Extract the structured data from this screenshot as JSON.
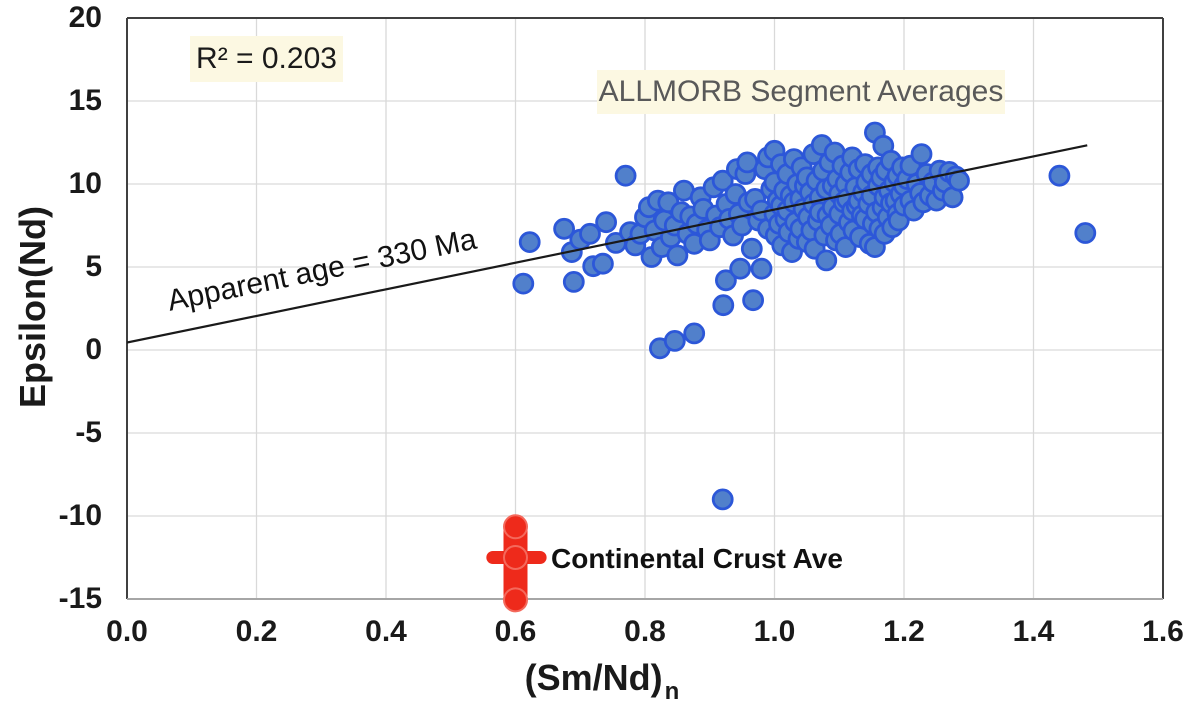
{
  "chart_data": {
    "type": "scatter",
    "title": "",
    "xlabel_main": "(Sm/Nd)",
    "xlabel_sub": "n",
    "ylabel": "Epsilon(Nd)",
    "xlim": [
      0,
      1.6
    ],
    "ylim": [
      -15,
      20
    ],
    "x_ticks": [
      "0.0",
      "0.2",
      "0.4",
      "0.6",
      "0.8",
      "1.0",
      "1.2",
      "1.4",
      "1.6"
    ],
    "y_ticks": [
      "20",
      "15",
      "10",
      "5",
      "0",
      "-5",
      "-10",
      "-15"
    ],
    "grid": true,
    "legend": "none",
    "annotations": {
      "r_squared": "R² = 0.203",
      "dataset_label": "ALLMORB Segment Averages",
      "trend_label": "Apparent age = 330 Ma",
      "crust_label": "Continental Crust Ave"
    },
    "trendline": {
      "x_start": 0,
      "y_start": 0.45,
      "x_end": 1.483,
      "y_end": 12.33
    },
    "colors": {
      "marker_fill": "#5180cb",
      "marker_stroke": "#2c57d8",
      "crust_red": "#ee2a1b",
      "crust_red_ring": "#f4695c",
      "gridline": "#d9d9d9",
      "border_dark": "#404040",
      "border_light": "#a6a6a6",
      "trend": "#1a1a1a",
      "annotation_bg": "#fcf8e2",
      "dataset_label_color": "#595959"
    },
    "series": [
      {
        "name": "ALLMORB Segment Averages",
        "points": [
          [
            0.612,
            4.0
          ],
          [
            0.622,
            6.5
          ],
          [
            0.675,
            7.3
          ],
          [
            0.687,
            5.9
          ],
          [
            0.69,
            4.1
          ],
          [
            0.7,
            6.65
          ],
          [
            0.715,
            7.0
          ],
          [
            0.72,
            5.05
          ],
          [
            0.735,
            5.2
          ],
          [
            0.74,
            7.7
          ],
          [
            0.755,
            6.45
          ],
          [
            0.77,
            10.5
          ],
          [
            0.777,
            7.1
          ],
          [
            0.785,
            6.3
          ],
          [
            0.793,
            7.0
          ],
          [
            0.8,
            8.0
          ],
          [
            0.81,
            5.6
          ],
          [
            0.823,
            0.1
          ],
          [
            0.846,
            0.55
          ],
          [
            0.876,
            1.0
          ],
          [
            0.92,
            -9.0
          ],
          [
            0.921,
            2.7
          ],
          [
            0.967,
            3.0
          ],
          [
            0.925,
            4.2
          ],
          [
            0.947,
            4.9
          ],
          [
            0.98,
            4.9
          ],
          [
            0.806,
            8.6
          ],
          [
            0.815,
            7.2
          ],
          [
            0.82,
            9.0
          ],
          [
            0.826,
            6.2
          ],
          [
            0.83,
            7.8
          ],
          [
            0.836,
            8.9
          ],
          [
            0.84,
            6.8
          ],
          [
            0.846,
            7.5
          ],
          [
            0.85,
            5.7
          ],
          [
            0.856,
            8.3
          ],
          [
            0.86,
            9.6
          ],
          [
            0.866,
            7.0
          ],
          [
            0.87,
            8.05
          ],
          [
            0.876,
            6.4
          ],
          [
            0.88,
            7.6
          ],
          [
            0.886,
            9.2
          ],
          [
            0.89,
            8.5
          ],
          [
            0.896,
            7.25
          ],
          [
            0.9,
            6.6
          ],
          [
            0.906,
            9.8
          ],
          [
            0.91,
            8.1
          ],
          [
            0.916,
            7.4
          ],
          [
            0.92,
            10.2
          ],
          [
            0.926,
            8.8
          ],
          [
            0.93,
            7.9
          ],
          [
            0.936,
            6.9
          ],
          [
            0.94,
            9.4
          ],
          [
            0.942,
            10.9
          ],
          [
            0.945,
            8.2
          ],
          [
            0.95,
            7.5
          ],
          [
            0.955,
            10.6
          ],
          [
            0.958,
            11.3
          ],
          [
            0.96,
            8.9
          ],
          [
            0.965,
            6.1
          ],
          [
            0.97,
            9.1
          ],
          [
            0.975,
            7.8
          ],
          [
            0.98,
            8.4
          ],
          [
            0.985,
            10.9
          ],
          [
            0.99,
            7.3
          ],
          [
            0.99,
            11.6
          ],
          [
            0.995,
            9.7
          ],
          [
            1.0,
            8.2
          ],
          [
            1.0,
            10.1
          ],
          [
            1.0,
            12.0
          ],
          [
            1.002,
            6.9
          ],
          [
            1.005,
            9.0
          ],
          [
            1.007,
            7.6
          ],
          [
            1.01,
            8.7
          ],
          [
            1.01,
            11.2
          ],
          [
            1.012,
            6.3
          ],
          [
            1.015,
            9.6
          ],
          [
            1.017,
            7.9
          ],
          [
            1.02,
            8.4
          ],
          [
            1.02,
            10.6
          ],
          [
            1.022,
            7.1
          ],
          [
            1.025,
            9.3
          ],
          [
            1.027,
            5.9
          ],
          [
            1.03,
            8.9
          ],
          [
            1.03,
            11.5
          ],
          [
            1.032,
            7.7
          ],
          [
            1.035,
            10.0
          ],
          [
            1.037,
            6.7
          ],
          [
            1.04,
            9.1
          ],
          [
            1.04,
            7.3
          ],
          [
            1.042,
            11.0
          ],
          [
            1.045,
            8.5
          ],
          [
            1.047,
            9.9
          ],
          [
            1.05,
            6.5
          ],
          [
            1.05,
            10.4
          ],
          [
            1.052,
            8.0
          ],
          [
            1.055,
            9.5
          ],
          [
            1.057,
            7.2
          ],
          [
            1.06,
            11.8
          ],
          [
            1.06,
            8.8
          ],
          [
            1.062,
            6.1
          ],
          [
            1.065,
            10.2
          ],
          [
            1.067,
            7.8
          ],
          [
            1.07,
            9.2
          ],
          [
            1.07,
            8.3
          ],
          [
            1.073,
            12.35
          ],
          [
            1.075,
            10.8
          ],
          [
            1.077,
            6.9
          ],
          [
            1.08,
            9.7
          ],
          [
            1.08,
            5.4
          ],
          [
            1.082,
            8.1
          ],
          [
            1.085,
            11.3
          ],
          [
            1.087,
            7.5
          ],
          [
            1.09,
            9.9
          ],
          [
            1.09,
            8.6
          ],
          [
            1.093,
            11.9
          ],
          [
            1.095,
            6.6
          ],
          [
            1.097,
            10.3
          ],
          [
            1.1,
            8.2
          ],
          [
            1.1,
            9.4
          ],
          [
            1.102,
            7.0
          ],
          [
            1.105,
            11.1
          ],
          [
            1.107,
            8.9
          ],
          [
            1.11,
            10.0
          ],
          [
            1.11,
            6.2
          ],
          [
            1.112,
            9.1
          ],
          [
            1.115,
            7.7
          ],
          [
            1.117,
            10.7
          ],
          [
            1.12,
            8.4
          ],
          [
            1.12,
            11.6
          ],
          [
            1.122,
            7.2
          ],
          [
            1.125,
            9.8
          ],
          [
            1.127,
            8.7
          ],
          [
            1.13,
            9.0
          ],
          [
            1.13,
            10.9
          ],
          [
            1.132,
            6.8
          ],
          [
            1.135,
            8.1
          ],
          [
            1.137,
            9.5
          ],
          [
            1.14,
            7.9
          ],
          [
            1.14,
            11.2
          ],
          [
            1.142,
            10.1
          ],
          [
            1.145,
            8.8
          ],
          [
            1.147,
            6.4
          ],
          [
            1.15,
            9.3
          ],
          [
            1.15,
            10.6
          ],
          [
            1.152,
            7.6
          ],
          [
            1.155,
            13.1
          ],
          [
            1.155,
            6.2
          ],
          [
            1.157,
            8.3
          ],
          [
            1.16,
            9.9
          ],
          [
            1.16,
            11.0
          ],
          [
            1.162,
            7.3
          ],
          [
            1.165,
            10.4
          ],
          [
            1.167,
            8.6
          ],
          [
            1.168,
            12.3
          ],
          [
            1.17,
            9.2
          ],
          [
            1.17,
            7.0
          ],
          [
            1.172,
            10.8
          ],
          [
            1.175,
            8.0
          ],
          [
            1.177,
            9.6
          ],
          [
            1.18,
            11.4
          ],
          [
            1.18,
            8.85
          ],
          [
            1.182,
            7.4
          ],
          [
            1.185,
            10.1
          ],
          [
            1.187,
            9.0
          ],
          [
            1.19,
            8.2
          ],
          [
            1.19,
            10.5
          ],
          [
            1.192,
            7.8
          ],
          [
            1.195,
            9.4
          ],
          [
            1.197,
            11.0
          ],
          [
            1.2,
            8.7
          ],
          [
            1.2,
            9.9
          ],
          [
            1.205,
            10.3
          ],
          [
            1.21,
            9.0
          ],
          [
            1.21,
            11.1
          ],
          [
            1.215,
            8.4
          ],
          [
            1.22,
            10.0
          ],
          [
            1.225,
            9.45
          ],
          [
            1.227,
            11.8
          ],
          [
            1.23,
            8.9
          ],
          [
            1.235,
            10.6
          ],
          [
            1.24,
            9.3
          ],
          [
            1.245,
            10.1
          ],
          [
            1.25,
            9.0
          ],
          [
            1.255,
            10.8
          ],
          [
            1.26,
            9.6
          ],
          [
            1.263,
            10.1
          ],
          [
            1.27,
            10.73
          ],
          [
            1.275,
            9.2
          ],
          [
            1.28,
            10.45
          ],
          [
            1.285,
            10.2
          ],
          [
            1.44,
            10.5
          ],
          [
            1.48,
            7.05
          ]
        ]
      },
      {
        "name": "Continental Crust Ave",
        "points": [
          [
            0.6,
            -10.65
          ],
          [
            0.6,
            -12.5
          ],
          [
            0.6,
            -15.05
          ]
        ],
        "error_bar_x": [
          0.565,
          0.638
        ],
        "error_bar_y": [
          -10.65,
          -15.05
        ],
        "center": [
          0.6,
          -12.5
        ]
      }
    ]
  }
}
